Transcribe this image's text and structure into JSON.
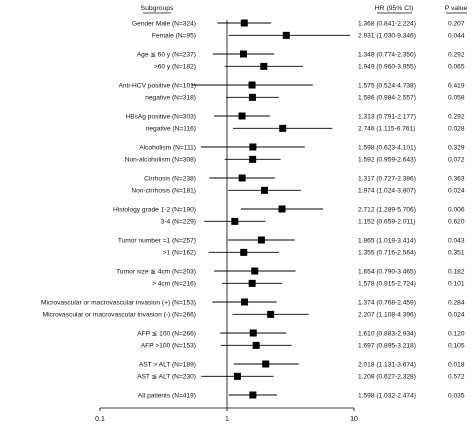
{
  "chart_data": {
    "type": "forest",
    "x_scale": "log",
    "xlim": [
      0.1,
      10
    ],
    "x_ticks": [
      {
        "value": 0.1,
        "label": "0.1"
      },
      {
        "value": 1,
        "label": "1"
      },
      {
        "value": 10,
        "label": "10"
      }
    ],
    "reference_value": 1,
    "headers": {
      "subgroups": "Subgroups",
      "hr": "HR (95% CI)",
      "p": "P value"
    },
    "rows": [
      {
        "label": "Gender Male (N=324)",
        "hr": 1.368,
        "lo": 0.841,
        "hi": 2.224,
        "hr_text": "1.368 (0.841-2.224)",
        "p": "0.207"
      },
      {
        "label": "Female (N=95)",
        "hr": 2.931,
        "lo": 1.03,
        "hi": 9.346,
        "hr_text": "2.931 (1.030-9.346)",
        "p": "0.044"
      },
      {
        "label": "Age ≦ 60 y (N=237)",
        "hr": 1.348,
        "lo": 0.774,
        "hi": 2.35,
        "hr_text": "1.348 (0.774-2.350)",
        "p": "0.292"
      },
      {
        "label": ">60 y (N=182)",
        "hr": 1.949,
        "lo": 0.96,
        "hi": 3.955,
        "hr_text": "1.949 (0.960-3.955)",
        "p": "0.065"
      },
      {
        "label": "Anti-HCV positive (N=101)",
        "hr": 1.575,
        "lo": 0.524,
        "hi": 4.738,
        "hr_text": "1.575 (0.524-4.738)",
        "p": "0.419"
      },
      {
        "label": "negative (N=318)",
        "hr": 1.586,
        "lo": 0.984,
        "hi": 2.557,
        "hr_text": "1.586 (0.984-2.557)",
        "p": "0.058"
      },
      {
        "label": "HBsAg positive (N=303)",
        "hr": 1.313,
        "lo": 0.791,
        "hi": 2.177,
        "hr_text": "1.313 (0.791-2.177)",
        "p": "0.292"
      },
      {
        "label": "negative (N=116)",
        "hr": 2.746,
        "lo": 1.115,
        "hi": 6.761,
        "hr_text": "2.746 (1.115-6.761)",
        "p": "0.028"
      },
      {
        "label": "Alcoholism (N=111)",
        "hr": 1.598,
        "lo": 0.623,
        "hi": 4.101,
        "hr_text": "1.598 (0.623-4.101)",
        "p": "0.329"
      },
      {
        "label": "Non-alcoholism (N=308)",
        "hr": 1.592,
        "lo": 0.959,
        "hi": 2.643,
        "hr_text": "1.592 (0.959-2.643)",
        "p": "0.072"
      },
      {
        "label": "Cirrhosis (N=238)",
        "hr": 1.317,
        "lo": 0.727,
        "hi": 2.386,
        "hr_text": "1.317 (0.727-2.386)",
        "p": "0.363"
      },
      {
        "label": "Non-cirrhosis (N=181)",
        "hr": 1.974,
        "lo": 1.024,
        "hi": 3.807,
        "hr_text": "1.974 (1.024-3.807)",
        "p": "0.024"
      },
      {
        "label": "Histology grade 1-2 (N=190)",
        "hr": 2.712,
        "lo": 1.289,
        "hi": 5.706,
        "hr_text": "2.712 (1.289-5.706)",
        "p": "0.006"
      },
      {
        "label": "3-4 (N=229)",
        "hr": 1.152,
        "lo": 0.659,
        "hi": 2.011,
        "hr_text": "1.152 (0.659-2.011)",
        "p": "0.620"
      },
      {
        "label": "Tumor number =1 (N=257)",
        "hr": 1.865,
        "lo": 1.019,
        "hi": 3.414,
        "hr_text": "1.865 (1.019-3.414)",
        "p": "0.043"
      },
      {
        "label": ">1 (N=162)",
        "hr": 1.355,
        "lo": 0.716,
        "hi": 2.564,
        "hr_text": "1.355 (0.716-2.564)",
        "p": "0.351"
      },
      {
        "label": "Tumor size ≦ 4cm (N=203)",
        "hr": 1.654,
        "lo": 0.79,
        "hi": 3.465,
        "hr_text": "1.654 (0.790-3.465)",
        "p": "0.182"
      },
      {
        "label": "> 4cm (N=216)",
        "hr": 1.578,
        "lo": 0.915,
        "hi": 2.724,
        "hr_text": "1.578 (0.915-2.724)",
        "p": "0.101"
      },
      {
        "label": "Microvascular or macrovascular invasion (+) (N=153)",
        "hr": 1.374,
        "lo": 0.768,
        "hi": 2.459,
        "hr_text": "1.374 (0.768-2.459)",
        "p": "0.284"
      },
      {
        "label": "Microvascular or macrovascular invasion (-) (N=266)",
        "hr": 2.207,
        "lo": 1.108,
        "hi": 4.396,
        "hr_text": "2.207 (1.108-4.396)",
        "p": "0.024"
      },
      {
        "label": "AFP ≦ 100 (N=266)",
        "hr": 1.61,
        "lo": 0.883,
        "hi": 2.934,
        "hr_text": "1.610 (0.883-2.934)",
        "p": "0.120"
      },
      {
        "label": "AFP >100 (N=153)",
        "hr": 1.697,
        "lo": 0.895,
        "hi": 3.218,
        "hr_text": "1.697 (0.895-3.218)",
        "p": "0.105"
      },
      {
        "label": "AST > ALT (N=189)",
        "hr": 2.018,
        "lo": 1.131,
        "hi": 3.674,
        "hr_text": "2.018 (1.131-3.674)",
        "p": "0.018"
      },
      {
        "label": "AST ≦ ALT (N=230)",
        "hr": 1.208,
        "lo": 0.627,
        "hi": 2.328,
        "hr_text": "1.208 (0.627-2.328)",
        "p": "0.572"
      },
      {
        "label": "All patients (N=419)",
        "hr": 1.598,
        "lo": 1.032,
        "hi": 2.474,
        "hr_text": "1.598 (1.032-2.474)",
        "p": "0.035"
      }
    ],
    "colors": {
      "marker": "#000000",
      "line": "#000000",
      "text": "#111111"
    }
  }
}
